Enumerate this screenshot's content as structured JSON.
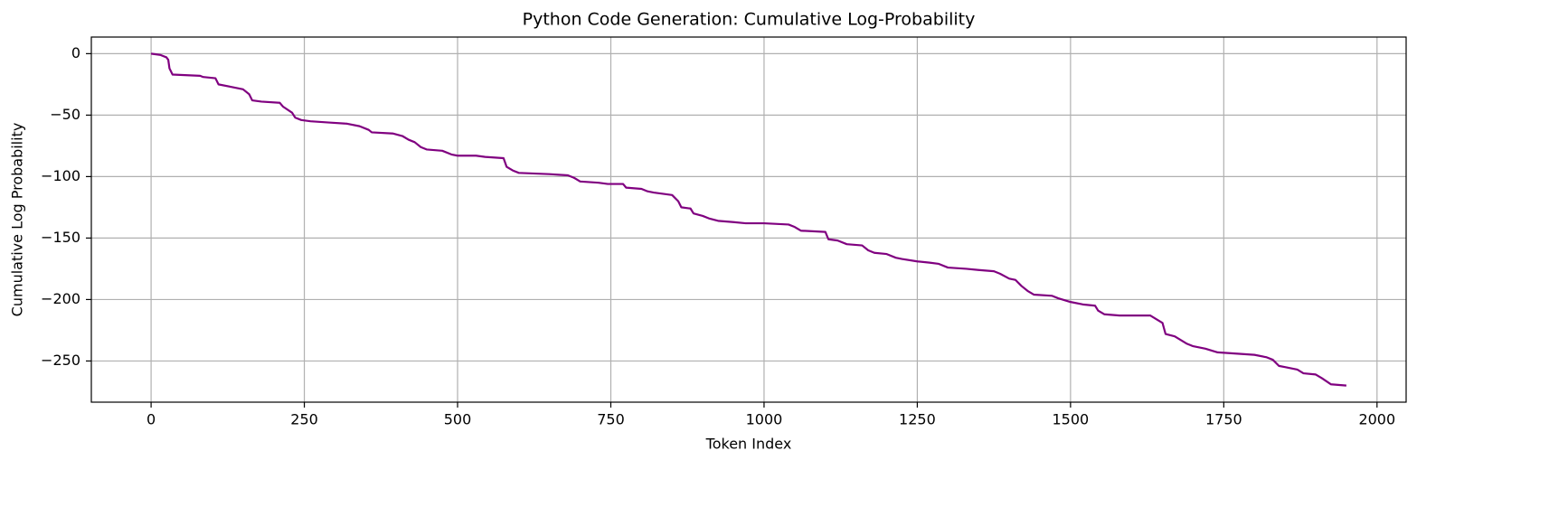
{
  "chart_data": {
    "type": "line",
    "title": "Python Code Generation: Cumulative Log-Probability",
    "xlabel": "Token Index",
    "ylabel": "Cumulative Log Probability",
    "x": [
      0,
      15,
      25,
      28,
      30,
      35,
      80,
      85,
      105,
      110,
      130,
      150,
      160,
      165,
      180,
      210,
      215,
      230,
      235,
      245,
      260,
      290,
      320,
      340,
      355,
      360,
      395,
      410,
      420,
      430,
      440,
      450,
      475,
      490,
      500,
      530,
      545,
      575,
      580,
      590,
      600,
      650,
      680,
      690,
      700,
      730,
      745,
      770,
      775,
      800,
      810,
      820,
      835,
      850,
      860,
      865,
      880,
      885,
      900,
      910,
      925,
      950,
      970,
      1000,
      1040,
      1050,
      1060,
      1100,
      1105,
      1120,
      1135,
      1160,
      1170,
      1180,
      1200,
      1215,
      1225,
      1250,
      1270,
      1285,
      1300,
      1330,
      1350,
      1375,
      1385,
      1400,
      1410,
      1420,
      1430,
      1440,
      1470,
      1480,
      1500,
      1520,
      1540,
      1545,
      1555,
      1580,
      1630,
      1640,
      1650,
      1655,
      1670,
      1680,
      1690,
      1700,
      1720,
      1740,
      1770,
      1800,
      1820,
      1830,
      1840,
      1850,
      1870,
      1880,
      1900,
      1910,
      1925,
      1950
    ],
    "series": [
      {
        "name": "Cumulative Log Probability",
        "color": "#800080",
        "values": [
          0,
          -1,
          -3,
          -5,
          -12,
          -17,
          -18,
          -19,
          -20,
          -25,
          -27,
          -29,
          -33,
          -38,
          -39,
          -40,
          -43,
          -48,
          -52,
          -54,
          -55,
          -56,
          -57,
          -59,
          -62,
          -64,
          -65,
          -67,
          -70,
          -72,
          -76,
          -78,
          -79,
          -82,
          -83,
          -83,
          -84,
          -85,
          -92,
          -95,
          -97,
          -98,
          -99,
          -101,
          -104,
          -105,
          -106,
          -106,
          -109,
          -110,
          -112,
          -113,
          -114,
          -115,
          -120,
          -125,
          -126,
          -130,
          -132,
          -134,
          -136,
          -137,
          -138,
          -138,
          -139,
          -141,
          -144,
          -145,
          -151,
          -152,
          -155,
          -156,
          -160,
          -162,
          -163,
          -166,
          -167,
          -169,
          -170,
          -171,
          -174,
          -175,
          -176,
          -177,
          -179,
          -183,
          -184,
          -189,
          -193,
          -196,
          -197,
          -199,
          -202,
          -204,
          -205,
          -209,
          -212,
          -213,
          -213,
          -216,
          -219,
          -228,
          -230,
          -233,
          -236,
          -238,
          -240,
          -243,
          -244,
          -245,
          -247,
          -249,
          -254,
          -255,
          -257,
          -260,
          -261,
          -264,
          -269,
          -270
        ]
      }
    ],
    "xlim": [
      -97.5,
      2047.5
    ],
    "xticks": [
      0,
      250,
      500,
      750,
      1000,
      1250,
      1500,
      1750,
      2000
    ],
    "ylim": [
      -283.5,
      13.5
    ],
    "yticks": [
      {
        "value": -250,
        "label": "−250"
      },
      {
        "value": -200,
        "label": "−200"
      },
      {
        "value": -150,
        "label": "−150"
      },
      {
        "value": -100,
        "label": "−100"
      },
      {
        "value": -50,
        "label": "−50"
      },
      0
    ],
    "grid": true
  }
}
